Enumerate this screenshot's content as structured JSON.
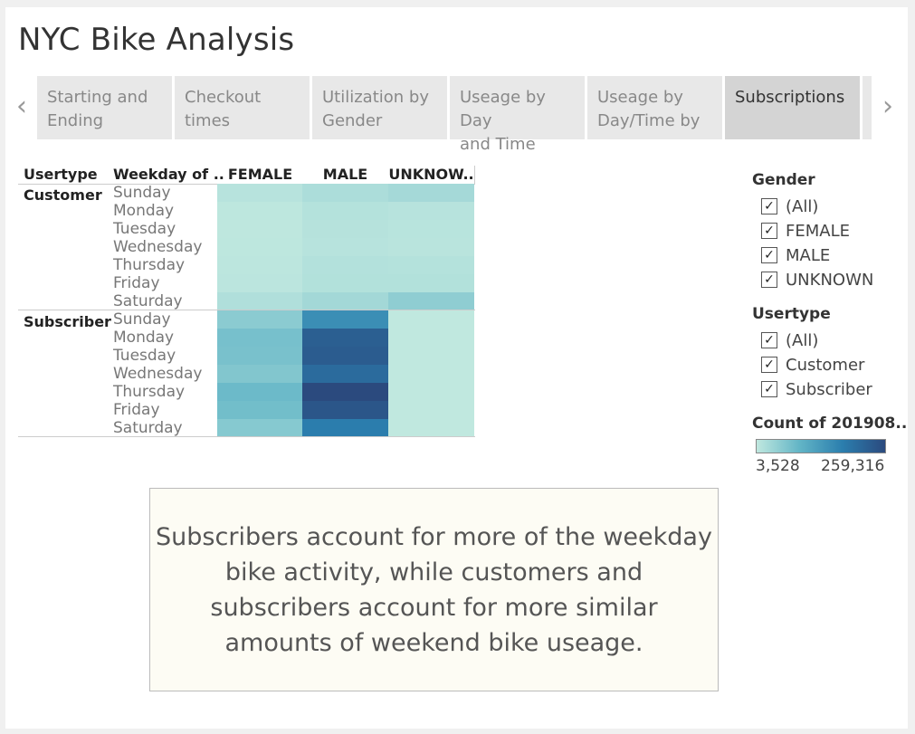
{
  "title": "NYC Bike Analysis",
  "tabs": [
    {
      "l1": "Starting and",
      "l2": "Ending"
    },
    {
      "l1": "Checkout",
      "l2": "times"
    },
    {
      "l1": "Utilization by",
      "l2": "Gender"
    },
    {
      "l1": "Useage by Day",
      "l2": "and Time"
    },
    {
      "l1": "Useage by",
      "l2": "Day/Time by"
    },
    {
      "l1": "Subscriptions",
      "l2": ""
    }
  ],
  "icons": {
    "prev": "chevron-left-icon",
    "next": "chevron-right-icon",
    "check": "checkmark-icon"
  },
  "table": {
    "col_usertype": "Usertype",
    "col_weekday": "Weekday of ..",
    "genders": [
      "FEMALE",
      "MALE",
      "UNKNOW.."
    ],
    "groups": [
      "Customer",
      "Subscriber"
    ],
    "days": [
      "Sunday",
      "Monday",
      "Tuesday",
      "Wednesday",
      "Thursday",
      "Friday",
      "Saturday"
    ]
  },
  "heat": {
    "colors": [
      "#c0e8df",
      "#62b5c6",
      "#2b7eae",
      "#2b4a7e"
    ],
    "min": 3528,
    "max": 259316,
    "Customer": {
      "FEMALE": [
        12000,
        6000,
        5500,
        6000,
        7500,
        8000,
        18000
      ],
      "MALE": [
        22000,
        14000,
        13000,
        12000,
        15000,
        16000,
        30000
      ],
      "UNKNOWN": [
        28000,
        12000,
        11000,
        10000,
        14000,
        16000,
        48000
      ]
    },
    "Subscriber": {
      "FEMALE": [
        52000,
        70000,
        68000,
        60000,
        80000,
        74000,
        56000
      ],
      "MALE": [
        150000,
        225000,
        230000,
        205000,
        259316,
        240000,
        175000
      ],
      "UNKNOWN": [
        3528,
        3528,
        3528,
        3528,
        3528,
        3528,
        3528
      ]
    }
  },
  "filters": {
    "gender_title": "Gender",
    "gender_items": [
      "(All)",
      "FEMALE",
      "MALE",
      "UNKNOWN"
    ],
    "usertype_title": "Usertype",
    "usertype_items": [
      "(All)",
      "Customer",
      "Subscriber"
    ],
    "legend_title": "Count of 201908..",
    "legend_min": "3,528",
    "legend_max": "259,316"
  },
  "note": "Subscribers account for more of the weekday bike activity, while customers and subscribers account for more similar amounts of weekend bike useage."
}
